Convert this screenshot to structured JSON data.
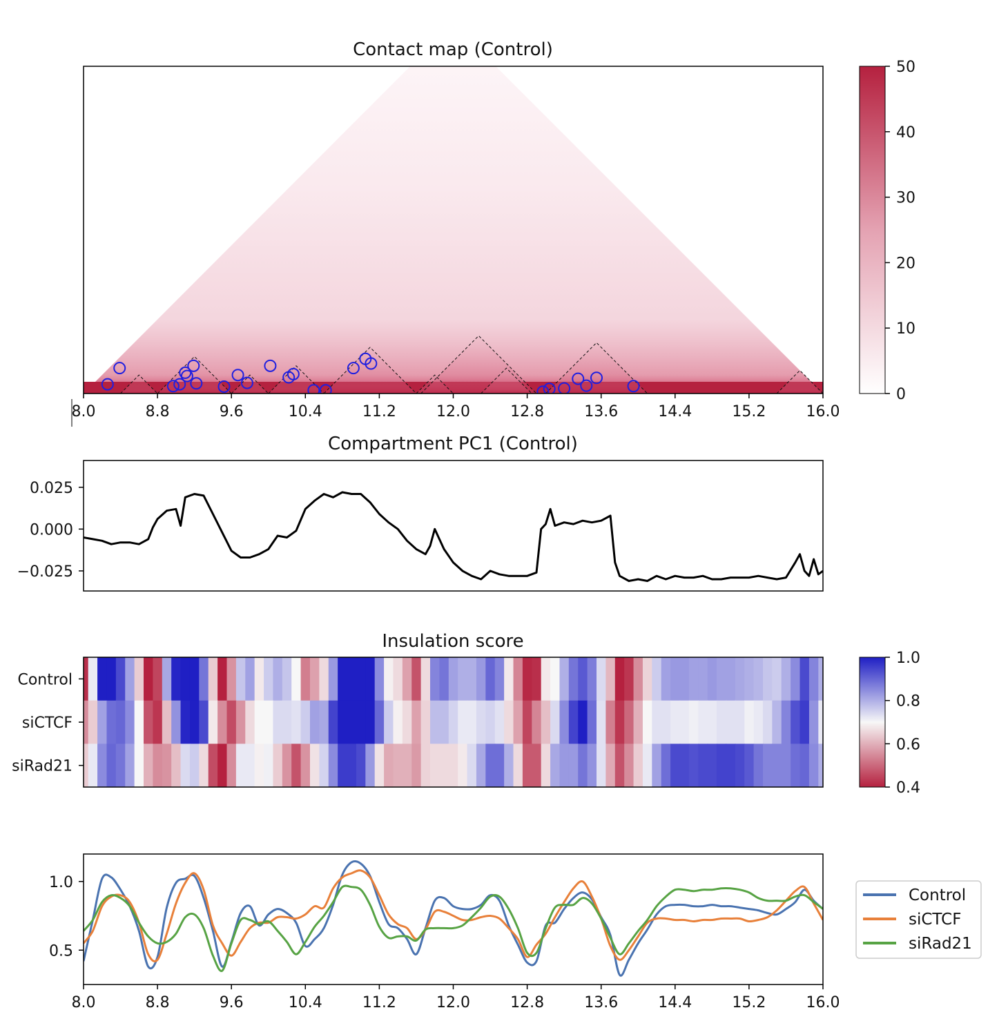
{
  "colors": {
    "heat_high": "#b5213f",
    "heat_low": "#ffffff",
    "insul_red": "#b5213f",
    "insul_white": "#f7f7f7",
    "insul_blue": "#1f1fc4",
    "loop_circle": "#1f1fe0",
    "control": "#4a73b0",
    "siCTCF": "#e8803a",
    "siRad21": "#57a344",
    "pc1_line": "#000000"
  },
  "chart_data": [
    {
      "type": "heatmap",
      "title": "Contact map (Control)",
      "x_range": [
        8.0,
        16.0
      ],
      "x_ticks": [
        "8.0",
        "8.8",
        "9.6",
        "10.4",
        "11.2",
        "12.0",
        "12.8",
        "13.6",
        "14.4",
        "15.2",
        "16.0"
      ],
      "colorbar": {
        "range": [
          0,
          50
        ],
        "ticks": [
          "0",
          "10",
          "20",
          "30",
          "40",
          "50"
        ]
      },
      "tads": [
        {
          "start": 8.4,
          "end": 8.8,
          "height": 0.4
        },
        {
          "start": 8.8,
          "end": 9.6,
          "height": 0.8
        },
        {
          "start": 9.6,
          "end": 10.0,
          "height": 0.4
        },
        {
          "start": 10.0,
          "end": 10.6,
          "height": 0.6
        },
        {
          "start": 10.6,
          "end": 11.6,
          "height": 1.0
        },
        {
          "start": 11.6,
          "end": 12.0,
          "height": 0.4
        },
        {
          "start": 11.65,
          "end": 12.9,
          "height": 1.3
        },
        {
          "start": 12.3,
          "end": 12.85,
          "height": 0.55
        },
        {
          "start": 13.0,
          "end": 14.1,
          "height": 0.8
        },
        {
          "start": 15.5,
          "end": 16.0,
          "height": 0.5
        }
      ],
      "loops": [
        {
          "x": 8.26,
          "d": 0.2
        },
        {
          "x": 8.39,
          "d": 0.55
        },
        {
          "x": 8.97,
          "d": 0.16
        },
        {
          "x": 9.04,
          "d": 0.2
        },
        {
          "x": 9.1,
          "d": 0.45
        },
        {
          "x": 9.12,
          "d": 0.38
        },
        {
          "x": 9.19,
          "d": 0.6
        },
        {
          "x": 9.22,
          "d": 0.22
        },
        {
          "x": 9.52,
          "d": 0.15
        },
        {
          "x": 9.67,
          "d": 0.4
        },
        {
          "x": 9.77,
          "d": 0.23
        },
        {
          "x": 10.02,
          "d": 0.6
        },
        {
          "x": 10.22,
          "d": 0.35
        },
        {
          "x": 10.27,
          "d": 0.42
        },
        {
          "x": 10.49,
          "d": 0.07
        },
        {
          "x": 10.62,
          "d": 0.07
        },
        {
          "x": 10.92,
          "d": 0.55
        },
        {
          "x": 11.05,
          "d": 0.75
        },
        {
          "x": 11.11,
          "d": 0.65
        },
        {
          "x": 12.97,
          "d": 0.04
        },
        {
          "x": 13.04,
          "d": 0.1
        },
        {
          "x": 13.2,
          "d": 0.11
        },
        {
          "x": 13.35,
          "d": 0.32
        },
        {
          "x": 13.44,
          "d": 0.17
        },
        {
          "x": 13.55,
          "d": 0.34
        },
        {
          "x": 13.95,
          "d": 0.16
        }
      ]
    },
    {
      "type": "line",
      "title": "Compartment PC1 (Control)",
      "x_range": [
        8.0,
        16.0
      ],
      "ylim": [
        -0.037,
        0.041
      ],
      "y_ticks": [
        0.025,
        0.0,
        -0.025
      ],
      "y_tick_labels": [
        "0.025",
        "0.000",
        "−0.025"
      ],
      "x": [
        8.0,
        8.1,
        8.2,
        8.3,
        8.4,
        8.5,
        8.6,
        8.7,
        8.75,
        8.8,
        8.9,
        9.0,
        9.05,
        9.1,
        9.2,
        9.3,
        9.4,
        9.5,
        9.6,
        9.7,
        9.8,
        9.9,
        10.0,
        10.1,
        10.2,
        10.3,
        10.4,
        10.5,
        10.6,
        10.7,
        10.8,
        10.9,
        11.0,
        11.1,
        11.2,
        11.3,
        11.4,
        11.5,
        11.6,
        11.7,
        11.75,
        11.8,
        11.9,
        12.0,
        12.1,
        12.2,
        12.3,
        12.4,
        12.5,
        12.6,
        12.7,
        12.8,
        12.9,
        12.95,
        13.0,
        13.05,
        13.1,
        13.2,
        13.3,
        13.4,
        13.5,
        13.6,
        13.7,
        13.75,
        13.8,
        13.9,
        14.0,
        14.1,
        14.2,
        14.3,
        14.4,
        14.5,
        14.6,
        14.7,
        14.8,
        14.9,
        15.0,
        15.1,
        15.2,
        15.3,
        15.4,
        15.5,
        15.6,
        15.7,
        15.75,
        15.8,
        15.85,
        15.9,
        15.95,
        16.0
      ],
      "y": [
        -0.005,
        -0.006,
        -0.007,
        -0.009,
        -0.008,
        -0.008,
        -0.009,
        -0.006,
        0.001,
        0.006,
        0.011,
        0.012,
        0.002,
        0.019,
        0.021,
        0.02,
        0.009,
        -0.002,
        -0.013,
        -0.017,
        -0.017,
        -0.015,
        -0.012,
        -0.004,
        -0.005,
        -0.001,
        0.012,
        0.017,
        0.021,
        0.019,
        0.022,
        0.021,
        0.021,
        0.016,
        0.009,
        0.004,
        0.0,
        -0.007,
        -0.012,
        -0.015,
        -0.01,
        0.0,
        -0.012,
        -0.02,
        -0.025,
        -0.028,
        -0.03,
        -0.025,
        -0.027,
        -0.028,
        -0.028,
        -0.028,
        -0.026,
        0.0,
        0.003,
        0.012,
        0.002,
        0.004,
        0.003,
        0.005,
        0.004,
        0.005,
        0.008,
        -0.02,
        -0.028,
        -0.031,
        -0.03,
        -0.031,
        -0.028,
        -0.03,
        -0.028,
        -0.029,
        -0.029,
        -0.028,
        -0.03,
        -0.03,
        -0.029,
        -0.029,
        -0.029,
        -0.028,
        -0.029,
        -0.03,
        -0.029,
        -0.02,
        -0.015,
        -0.025,
        -0.028,
        -0.018,
        -0.027,
        -0.025
      ]
    },
    {
      "type": "heatmap",
      "title": "Insulation score",
      "rows": [
        "Control",
        "siCTCF",
        "siRad21"
      ],
      "x_range": [
        8.0,
        16.0
      ],
      "colorbar": {
        "range": [
          0.4,
          1.0
        ],
        "ticks": [
          "1.0",
          "0.8",
          "0.6",
          "0.4"
        ]
      }
    },
    {
      "type": "line",
      "x_range": [
        8.0,
        16.0
      ],
      "ylim": [
        0.25,
        1.2
      ],
      "y_ticks": [
        1.0,
        0.5
      ],
      "y_tick_labels": [
        "1.0",
        "0.5"
      ],
      "x_ticks": [
        "8.0",
        "8.8",
        "9.6",
        "10.4",
        "11.2",
        "12.0",
        "12.8",
        "13.6",
        "14.4",
        "15.2",
        "16.0"
      ],
      "x": [
        8.0,
        8.1,
        8.2,
        8.3,
        8.4,
        8.5,
        8.6,
        8.7,
        8.8,
        8.9,
        9.0,
        9.1,
        9.2,
        9.3,
        9.4,
        9.5,
        9.6,
        9.7,
        9.8,
        9.9,
        10.0,
        10.1,
        10.2,
        10.3,
        10.4,
        10.5,
        10.6,
        10.7,
        10.8,
        10.9,
        11.0,
        11.1,
        11.2,
        11.3,
        11.4,
        11.5,
        11.6,
        11.7,
        11.8,
        11.9,
        12.0,
        12.1,
        12.2,
        12.3,
        12.4,
        12.5,
        12.6,
        12.7,
        12.8,
        12.9,
        13.0,
        13.1,
        13.2,
        13.3,
        13.4,
        13.5,
        13.6,
        13.7,
        13.8,
        13.9,
        14.0,
        14.1,
        14.2,
        14.3,
        14.4,
        14.5,
        14.6,
        14.7,
        14.8,
        14.9,
        15.0,
        15.1,
        15.2,
        15.3,
        15.4,
        15.5,
        15.6,
        15.7,
        15.8,
        15.9,
        16.0
      ],
      "series": [
        {
          "name": "Control",
          "values": [
            0.42,
            0.72,
            1.02,
            1.03,
            0.94,
            0.82,
            0.64,
            0.38,
            0.45,
            0.81,
            0.99,
            1.02,
            1.04,
            0.88,
            0.64,
            0.38,
            0.56,
            0.77,
            0.82,
            0.68,
            0.76,
            0.8,
            0.77,
            0.7,
            0.53,
            0.58,
            0.66,
            0.83,
            1.05,
            1.14,
            1.13,
            1.04,
            0.85,
            0.69,
            0.66,
            0.58,
            0.47,
            0.66,
            0.86,
            0.88,
            0.82,
            0.8,
            0.8,
            0.83,
            0.9,
            0.86,
            0.68,
            0.54,
            0.41,
            0.42,
            0.68,
            0.7,
            0.8,
            0.88,
            0.92,
            0.87,
            0.74,
            0.61,
            0.32,
            0.43,
            0.55,
            0.65,
            0.76,
            0.82,
            0.83,
            0.83,
            0.82,
            0.82,
            0.83,
            0.82,
            0.82,
            0.81,
            0.8,
            0.79,
            0.77,
            0.76,
            0.8,
            0.85,
            0.94,
            0.86,
            0.8
          ]
        },
        {
          "name": "siCTCF",
          "values": [
            0.55,
            0.64,
            0.82,
            0.89,
            0.9,
            0.85,
            0.7,
            0.47,
            0.43,
            0.62,
            0.84,
            0.99,
            1.06,
            0.94,
            0.68,
            0.55,
            0.46,
            0.56,
            0.66,
            0.7,
            0.7,
            0.74,
            0.74,
            0.73,
            0.76,
            0.82,
            0.81,
            0.95,
            1.03,
            1.06,
            1.08,
            1.03,
            0.9,
            0.76,
            0.69,
            0.66,
            0.58,
            0.65,
            0.78,
            0.78,
            0.75,
            0.72,
            0.72,
            0.74,
            0.75,
            0.73,
            0.66,
            0.58,
            0.45,
            0.54,
            0.62,
            0.74,
            0.85,
            0.95,
            1.0,
            0.89,
            0.73,
            0.53,
            0.43,
            0.5,
            0.6,
            0.7,
            0.73,
            0.73,
            0.72,
            0.72,
            0.71,
            0.72,
            0.72,
            0.73,
            0.73,
            0.73,
            0.71,
            0.72,
            0.74,
            0.79,
            0.86,
            0.93,
            0.96,
            0.84,
            0.72
          ]
        },
        {
          "name": "siRad21",
          "values": [
            0.64,
            0.72,
            0.85,
            0.9,
            0.88,
            0.82,
            0.7,
            0.6,
            0.55,
            0.56,
            0.62,
            0.74,
            0.76,
            0.66,
            0.46,
            0.35,
            0.55,
            0.72,
            0.72,
            0.69,
            0.71,
            0.64,
            0.56,
            0.47,
            0.56,
            0.67,
            0.75,
            0.85,
            0.96,
            0.96,
            0.94,
            0.83,
            0.67,
            0.59,
            0.6,
            0.6,
            0.57,
            0.65,
            0.66,
            0.66,
            0.66,
            0.68,
            0.74,
            0.81,
            0.89,
            0.89,
            0.8,
            0.66,
            0.48,
            0.48,
            0.66,
            0.81,
            0.83,
            0.83,
            0.88,
            0.84,
            0.73,
            0.59,
            0.47,
            0.55,
            0.64,
            0.72,
            0.82,
            0.89,
            0.94,
            0.94,
            0.93,
            0.94,
            0.94,
            0.95,
            0.95,
            0.94,
            0.92,
            0.88,
            0.86,
            0.86,
            0.86,
            0.89,
            0.9,
            0.85,
            0.8
          ]
        }
      ],
      "legend_position": "right, outside axes"
    }
  ]
}
